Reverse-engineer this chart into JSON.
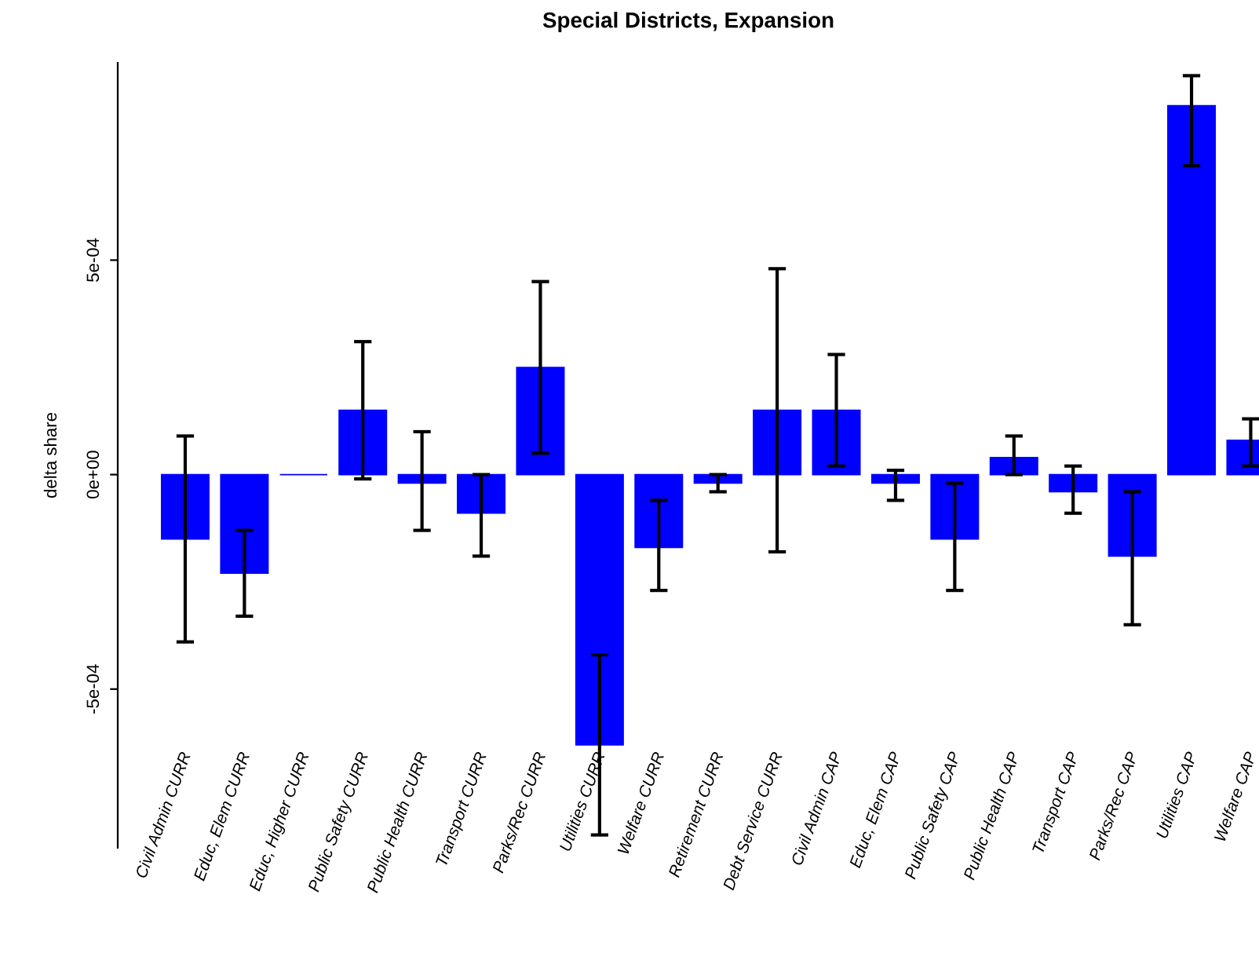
{
  "chart_data": {
    "type": "bar",
    "title": "Special Districts, Expansion",
    "ylabel": "delta share",
    "categories": [
      "Civil Admin CURR",
      "Educ, Elem CURR",
      "Educ, Higher CURR",
      "Public Safety CURR",
      "Public Health CURR",
      "Transport CURR",
      "Parks/Rec CURR",
      "Utilities CURR",
      "Welfare CURR",
      "Retirement CURR",
      "Debt Service CURR",
      "Civil Admin CAP",
      "Educ, Elem CAP",
      "Public Safety CAP",
      "Public Health CAP",
      "Transport CAP",
      "Parks/Rec CAP",
      "Utilities CAP",
      "Welfare CAP"
    ],
    "values": [
      -0.00015,
      -0.00023,
      0.0,
      0.00015,
      -2e-05,
      -9e-05,
      0.00025,
      -0.00063,
      -0.00017,
      -2e-05,
      0.00015,
      0.00015,
      -2e-05,
      -0.00015,
      4e-05,
      -4e-05,
      -0.00019,
      0.00086,
      8e-05
    ],
    "errors": [
      [
        -0.00039,
        9e-05
      ],
      [
        -0.00033,
        -0.00013
      ],
      null,
      [
        -1e-05,
        0.00031
      ],
      [
        -0.00013,
        0.0001
      ],
      [
        -0.00019,
        0.0
      ],
      [
        5e-05,
        0.00045
      ],
      [
        -0.00084,
        -0.00042
      ],
      [
        -0.00027,
        -6e-05
      ],
      [
        -4e-05,
        0.0
      ],
      [
        -0.00018,
        0.00048
      ],
      [
        2e-05,
        0.00028
      ],
      [
        -6e-05,
        1e-05
      ],
      [
        -0.00027,
        -2e-05
      ],
      [
        0.0,
        9e-05
      ],
      [
        -9e-05,
        2e-05
      ],
      [
        -0.00035,
        -4e-05
      ],
      [
        0.00072,
        0.00093
      ],
      [
        2e-05,
        0.00013
      ]
    ],
    "color": "#0000ff",
    "ylim": [
      -0.00087,
      0.00096
    ],
    "yticks": [
      {
        "value": -0.0005,
        "label": "-5e-04"
      },
      {
        "value": 0,
        "label": "0e+00"
      },
      {
        "value": 0.0005,
        "label": "5e-04"
      }
    ],
    "grid": false,
    "legend": false
  }
}
